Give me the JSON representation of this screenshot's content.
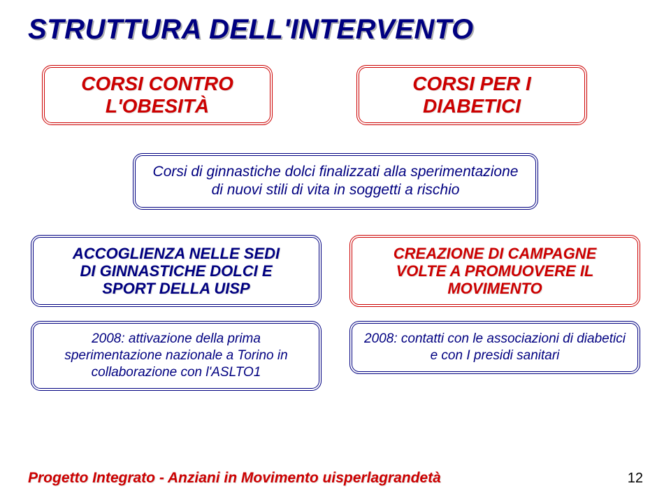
{
  "title": "STRUTTURA DELL'INTERVENTO",
  "row1": {
    "left": {
      "line1": "CORSI CONTRO",
      "line2": "L'OBESITÀ"
    },
    "right": {
      "line1": "CORSI PER I",
      "line2": "DIABETICI"
    }
  },
  "desc": "Corsi di ginnastiche dolci finalizzati alla sperimentazione di nuovi stili di vita in soggetti a rischio",
  "col_left": {
    "box1": {
      "l1": "ACCOGLIENZA NELLE SEDI",
      "l2": "DI GINNASTICHE DOLCI E",
      "l3": "SPORT DELLA UISP"
    },
    "box2": "2008: attivazione della prima sperimentazione nazionale a Torino in collaborazione con l'ASLTO1"
  },
  "col_right": {
    "box1": {
      "l1": "CREAZIONE DI CAMPAGNE",
      "l2": "VOLTE A PROMUOVERE IL",
      "l3": "MOVIMENTO"
    },
    "box2": "2008: contatti con le associazioni di diabetici e con I presidi sanitari"
  },
  "footer": "Progetto Integrato - Anziani in Movimento uisperlagrandetà",
  "page": "12",
  "colors": {
    "navy": "#000080",
    "red": "#cc0000",
    "shadow": "#b0b0b0",
    "bg": "#ffffff"
  },
  "fontsizes": {
    "title": 40,
    "box_main": 28,
    "box_sub_heading": 22,
    "desc": 21,
    "sub": 19,
    "footer": 21,
    "page": 20
  }
}
